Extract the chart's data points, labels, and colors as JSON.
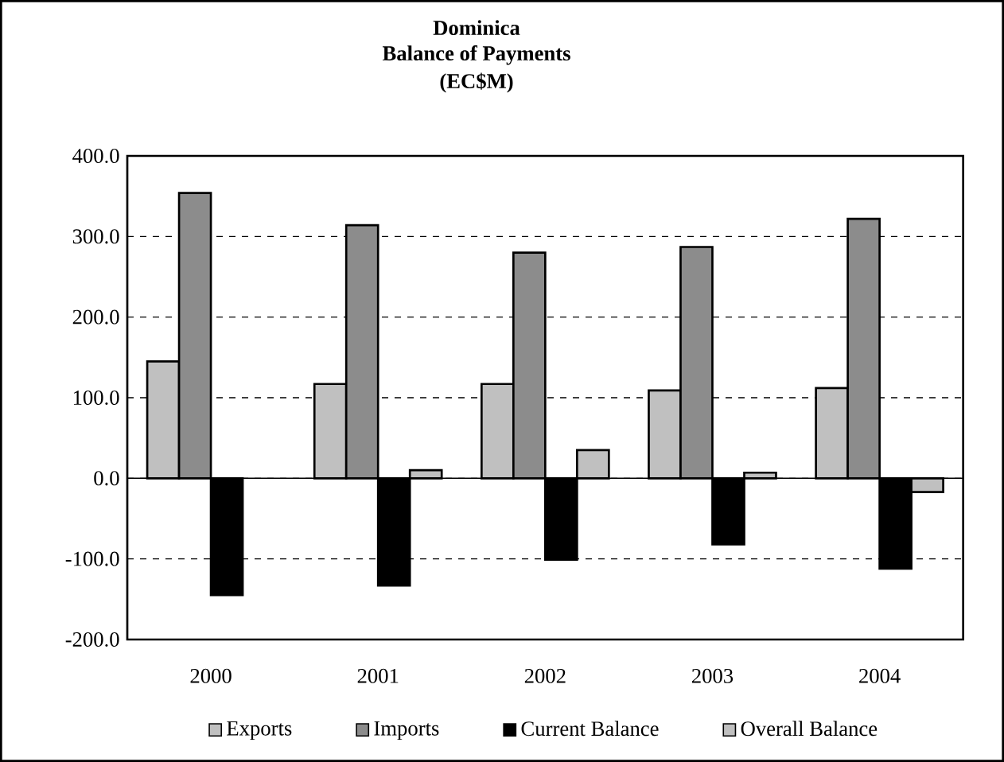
{
  "chart_data": {
    "type": "bar",
    "title": "Dominica",
    "subtitle": "Balance of Payments",
    "annotations": [
      "(EC$M)"
    ],
    "categories": [
      "2000",
      "2001",
      "2002",
      "2003",
      "2004"
    ],
    "series": [
      {
        "name": "Exports",
        "color": "#c0c0c0",
        "values": [
          145,
          117,
          117,
          109,
          112
        ]
      },
      {
        "name": "Imports",
        "color": "#8c8c8c",
        "values": [
          354,
          314,
          280,
          287,
          322
        ]
      },
      {
        "name": "Current Balance",
        "color": "#000000",
        "values": [
          -145,
          -133,
          -101,
          -82,
          -112
        ]
      },
      {
        "name": "Overall Balance",
        "color": "#c0c0c0",
        "values": [
          null,
          10,
          35,
          7,
          -17
        ]
      }
    ],
    "ylim": [
      -200,
      400
    ],
    "yticks": [
      {
        "value": -200,
        "label": "-200.0"
      },
      {
        "value": -100,
        "label": "-100.0"
      },
      {
        "value": 0,
        "label": "0.0"
      },
      {
        "value": 100,
        "label": "100.0"
      },
      {
        "value": 200,
        "label": "200.0"
      },
      {
        "value": 300,
        "label": "300.0"
      },
      {
        "value": 400,
        "label": "400.0"
      }
    ],
    "grid": "y",
    "legend": "bottom"
  }
}
